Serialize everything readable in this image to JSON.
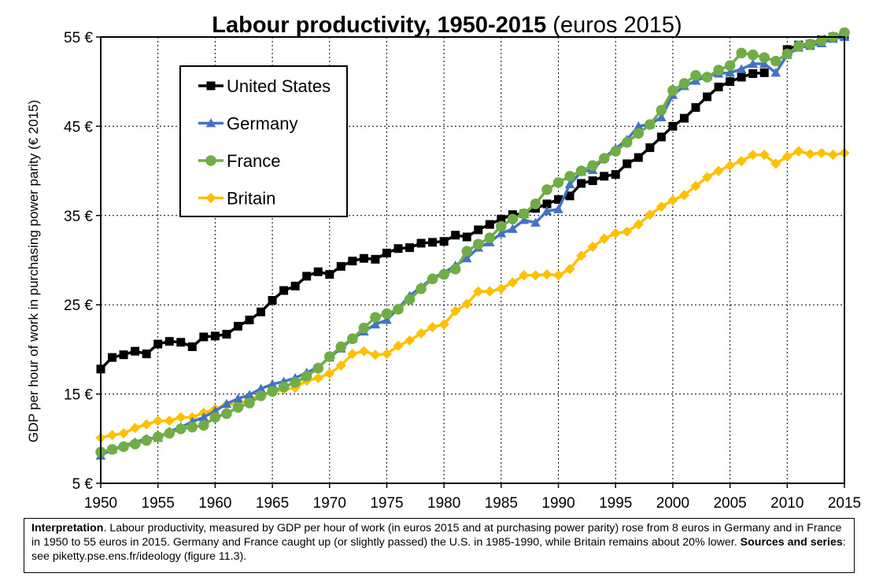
{
  "chart_data": {
    "type": "line",
    "title": "Labour productivity, 1950-2015",
    "subtitle": "(euros 2015)",
    "ylabel": "GDP per hour of work in purchasing power parity (€ 2015)",
    "xlabel": "",
    "xlim": [
      1950,
      2015
    ],
    "ylim": [
      5,
      55
    ],
    "x_ticks": [
      "1950",
      "1955",
      "1960",
      "1965",
      "1970",
      "1975",
      "1980",
      "1985",
      "1990",
      "1995",
      "2000",
      "2005",
      "2010",
      "2015"
    ],
    "y_ticks": [
      "5 €",
      "15 €",
      "25 €",
      "35 €",
      "45 €",
      "55 €"
    ],
    "y_tick_values": [
      5,
      15,
      25,
      35,
      45,
      55
    ],
    "x_tick_values": [
      1950,
      1955,
      1960,
      1965,
      1970,
      1975,
      1980,
      1985,
      1990,
      1995,
      2000,
      2005,
      2010,
      2015
    ],
    "grid": true,
    "legend_position": "top-left",
    "series": [
      {
        "name": "United States",
        "color": "#000000",
        "marker": "square",
        "x": [
          1950,
          1951,
          1952,
          1953,
          1954,
          1955,
          1956,
          1957,
          1958,
          1959,
          1960,
          1961,
          1962,
          1963,
          1964,
          1965,
          1966,
          1967,
          1968,
          1969,
          1970,
          1971,
          1972,
          1973,
          1974,
          1975,
          1976,
          1977,
          1978,
          1979,
          1980,
          1981,
          1982,
          1983,
          1984,
          1985,
          1986,
          1987,
          1988,
          1989,
          1990,
          1991,
          1992,
          1993,
          1994,
          1995,
          1996,
          1997,
          1998,
          1999,
          2000,
          2001,
          2002,
          2003,
          2004,
          2005,
          2006,
          2007,
          2008,
          2009,
          2010,
          2011,
          2012,
          2013,
          2014,
          2015
        ],
        "y": [
          17.8,
          19.1,
          19.4,
          19.8,
          19.5,
          20.6,
          20.9,
          20.8,
          20.3,
          21.4,
          21.5,
          21.7,
          22.6,
          23.3,
          24.2,
          25.5,
          26.6,
          27.1,
          28.2,
          28.7,
          28.4,
          29.3,
          29.9,
          30.2,
          30.1,
          30.8,
          31.3,
          31.4,
          31.9,
          32.0,
          32.1,
          32.8,
          32.6,
          33.4,
          34.0,
          34.6,
          35.1,
          35.2,
          35.8,
          36.3,
          36.8,
          37.2,
          38.6,
          38.9,
          39.4,
          39.6,
          40.8,
          41.5,
          42.6,
          43.8,
          45.0,
          45.9,
          47.1,
          48.3,
          49.4,
          50.0,
          50.5,
          50.9,
          51.0,
          null,
          53.6,
          54.1,
          54.2,
          54.7,
          55.0,
          55.2
        ]
      },
      {
        "name": "Germany",
        "color": "#4472C4",
        "marker": "triangle",
        "x": [
          1950,
          1951,
          1952,
          1953,
          1954,
          1955,
          1956,
          1957,
          1958,
          1959,
          1960,
          1961,
          1962,
          1963,
          1964,
          1965,
          1966,
          1967,
          1968,
          1969,
          1970,
          1971,
          1972,
          1973,
          1974,
          1975,
          1976,
          1977,
          1978,
          1979,
          1980,
          1981,
          1982,
          1983,
          1984,
          1985,
          1986,
          1987,
          1988,
          1989,
          1990,
          1991,
          1992,
          1993,
          1994,
          1995,
          1996,
          1997,
          1998,
          1999,
          2000,
          2001,
          2002,
          2003,
          2004,
          2005,
          2006,
          2007,
          2008,
          2009,
          2010,
          2011,
          2012,
          2013,
          2014,
          2015
        ],
        "y": [
          8.1,
          8.8,
          9.2,
          9.6,
          10.0,
          10.1,
          10.8,
          11.3,
          11.9,
          12.4,
          13.1,
          13.9,
          14.5,
          14.9,
          15.6,
          16.1,
          16.4,
          16.8,
          17.4,
          18.0,
          19.1,
          20.1,
          21.2,
          22.0,
          22.8,
          23.3,
          24.6,
          26.0,
          27.0,
          28.0,
          28.6,
          29.4,
          30.2,
          31.4,
          32.0,
          33.0,
          33.5,
          34.5,
          34.2,
          35.5,
          35.7,
          38.5,
          39.9,
          40.1,
          41.5,
          42.5,
          43.5,
          45.0,
          45.2,
          46.0,
          48.5,
          49.5,
          50.1,
          50.6,
          50.9,
          51.0,
          51.4,
          52.0,
          52.0,
          51.0,
          53.0,
          53.8,
          54.0,
          54.3,
          54.8,
          55.0
        ]
      },
      {
        "name": "France",
        "color": "#70AD47",
        "marker": "circle",
        "x": [
          1950,
          1951,
          1952,
          1953,
          1954,
          1955,
          1956,
          1957,
          1958,
          1959,
          1960,
          1961,
          1962,
          1963,
          1964,
          1965,
          1966,
          1967,
          1968,
          1969,
          1970,
          1971,
          1972,
          1973,
          1974,
          1975,
          1976,
          1977,
          1978,
          1979,
          1980,
          1981,
          1982,
          1983,
          1984,
          1985,
          1986,
          1987,
          1988,
          1989,
          1990,
          1991,
          1992,
          1993,
          1994,
          1995,
          1996,
          1997,
          1998,
          1999,
          2000,
          2001,
          2002,
          2003,
          2004,
          2005,
          2006,
          2007,
          2008,
          2009,
          2010,
          2011,
          2012,
          2013,
          2014,
          2015
        ],
        "y": [
          8.5,
          8.8,
          9.1,
          9.4,
          9.8,
          10.2,
          10.6,
          11.1,
          11.3,
          11.5,
          12.4,
          12.8,
          13.5,
          14.0,
          14.8,
          15.3,
          15.8,
          16.3,
          17.0,
          17.9,
          19.2,
          20.3,
          21.2,
          22.4,
          23.6,
          24.0,
          24.5,
          25.6,
          26.8,
          27.9,
          28.4,
          29.0,
          31.0,
          31.8,
          32.5,
          33.8,
          34.6,
          35.2,
          36.3,
          37.9,
          38.7,
          39.4,
          40.0,
          40.6,
          41.4,
          42.2,
          43.2,
          44.2,
          45.2,
          46.8,
          49.0,
          49.8,
          50.7,
          50.5,
          51.3,
          51.8,
          53.2,
          53.0,
          52.7,
          52.3,
          53.1,
          54.0,
          54.2,
          54.6,
          55.0,
          55.5
        ]
      },
      {
        "name": "Britain",
        "color": "#FFC000",
        "marker": "diamond",
        "x": [
          1950,
          1951,
          1952,
          1953,
          1954,
          1955,
          1956,
          1957,
          1958,
          1959,
          1960,
          1961,
          1962,
          1963,
          1964,
          1965,
          1966,
          1967,
          1968,
          1969,
          1970,
          1971,
          1972,
          1973,
          1974,
          1975,
          1976,
          1977,
          1978,
          1979,
          1980,
          1981,
          1982,
          1983,
          1984,
          1985,
          1986,
          1987,
          1988,
          1989,
          1990,
          1991,
          1992,
          1993,
          1994,
          1995,
          1996,
          1997,
          1998,
          1999,
          2000,
          2001,
          2002,
          2003,
          2004,
          2005,
          2006,
          2007,
          2008,
          2009,
          2010,
          2011,
          2012,
          2013,
          2014,
          2015
        ],
        "y": [
          10.1,
          10.4,
          10.6,
          11.2,
          11.6,
          12.0,
          12.0,
          12.4,
          12.4,
          12.9,
          13.3,
          13.8,
          13.9,
          14.4,
          14.9,
          15.2,
          15.5,
          15.7,
          16.5,
          16.8,
          17.3,
          18.2,
          19.5,
          19.8,
          19.4,
          19.5,
          20.4,
          21.0,
          21.8,
          22.5,
          22.8,
          24.3,
          25.1,
          26.5,
          26.5,
          26.8,
          27.5,
          28.3,
          28.3,
          28.4,
          28.3,
          29.0,
          30.5,
          31.5,
          32.4,
          33.0,
          33.2,
          34.0,
          35.1,
          36.0,
          36.7,
          37.3,
          38.3,
          39.3,
          40.0,
          40.6,
          41.1,
          41.8,
          41.8,
          40.8,
          41.6,
          42.2,
          41.9,
          42.0,
          41.8,
          42.0
        ]
      }
    ]
  },
  "note": {
    "interp_label": "Interpretation",
    "interp_text": ". Labour productivity, measured by GDP per hour of work (in euros 2015 and at purchasing power parity) rose from 8 euros in Germany and in France in 1950 to 55 euros in 2015. Germany and France caught up (or slightly passed) the U.S. in 1985-1990, while Britain remains about 20% lower.",
    "sources_label": "Sources and series",
    "sources_text": ": see piketty.pse.ens.fr/ideology (figure 11.3)."
  }
}
